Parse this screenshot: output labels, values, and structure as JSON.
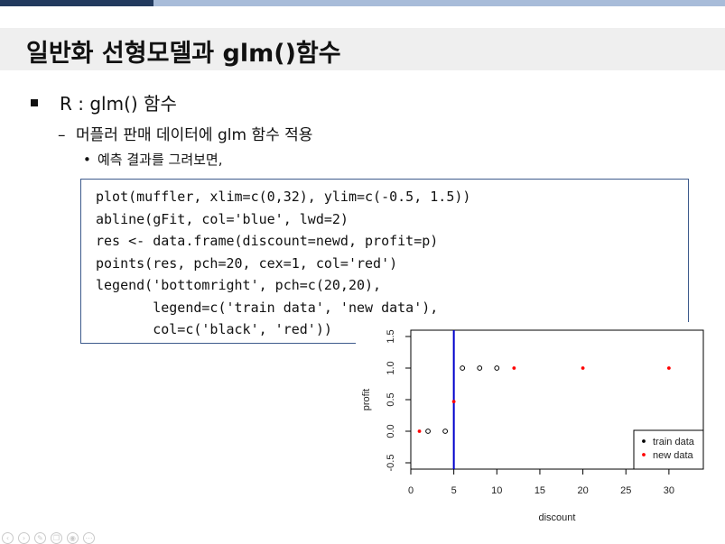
{
  "slide": {
    "title": "일반화 선형모델과 glm()함수",
    "bullet1": "R : glm() 함수",
    "bullet2": "머플러 판매 데이터에 glm 함수 적용",
    "bullet3": "예측 결과를 그려보면,"
  },
  "code": [
    "plot(muffler, xlim=c(0,32), ylim=c(-0.5, 1.5))",
    "abline(gFit, col='blue', lwd=2)",
    "res <- data.frame(discount=newd, profit=p)",
    "points(res, pch=20, cex=1, col='red')",
    "legend('bottomright', pch=c(20,20),",
    "       legend=c('train data', 'new data'),",
    "       col=c('black', 'red'))"
  ],
  "chart_data": {
    "type": "scatter",
    "xlabel": "discount",
    "ylabel": "profit",
    "xlim": [
      0,
      34
    ],
    "ylim": [
      -0.6,
      1.6
    ],
    "x_ticks": [
      0,
      5,
      10,
      15,
      20,
      25,
      30
    ],
    "y_ticks": [
      -0.5,
      0.0,
      0.5,
      1.0,
      1.5
    ],
    "y_tick_labels": [
      "-0.5",
      "0.0",
      "0.5",
      "1.0",
      "1.5"
    ],
    "series": [
      {
        "name": "train data",
        "color": "#000000",
        "marker": "open-circle",
        "points": [
          [
            2,
            0
          ],
          [
            4,
            0
          ],
          [
            6,
            1
          ],
          [
            8,
            1
          ],
          [
            10,
            1
          ]
        ]
      },
      {
        "name": "new data",
        "color": "#ff0000",
        "marker": "filled-dot",
        "points": [
          [
            1,
            0
          ],
          [
            5,
            0.47
          ],
          [
            12,
            1
          ],
          [
            20,
            1
          ],
          [
            30,
            1
          ]
        ]
      }
    ],
    "vline": {
      "x": 5,
      "color": "#0000cc"
    },
    "legend_position": "bottom-right",
    "grid": false
  },
  "nav": {
    "icons": [
      "prev-icon",
      "next-icon",
      "pen-icon",
      "copy-icon",
      "view-icon",
      "more-icon"
    ]
  }
}
